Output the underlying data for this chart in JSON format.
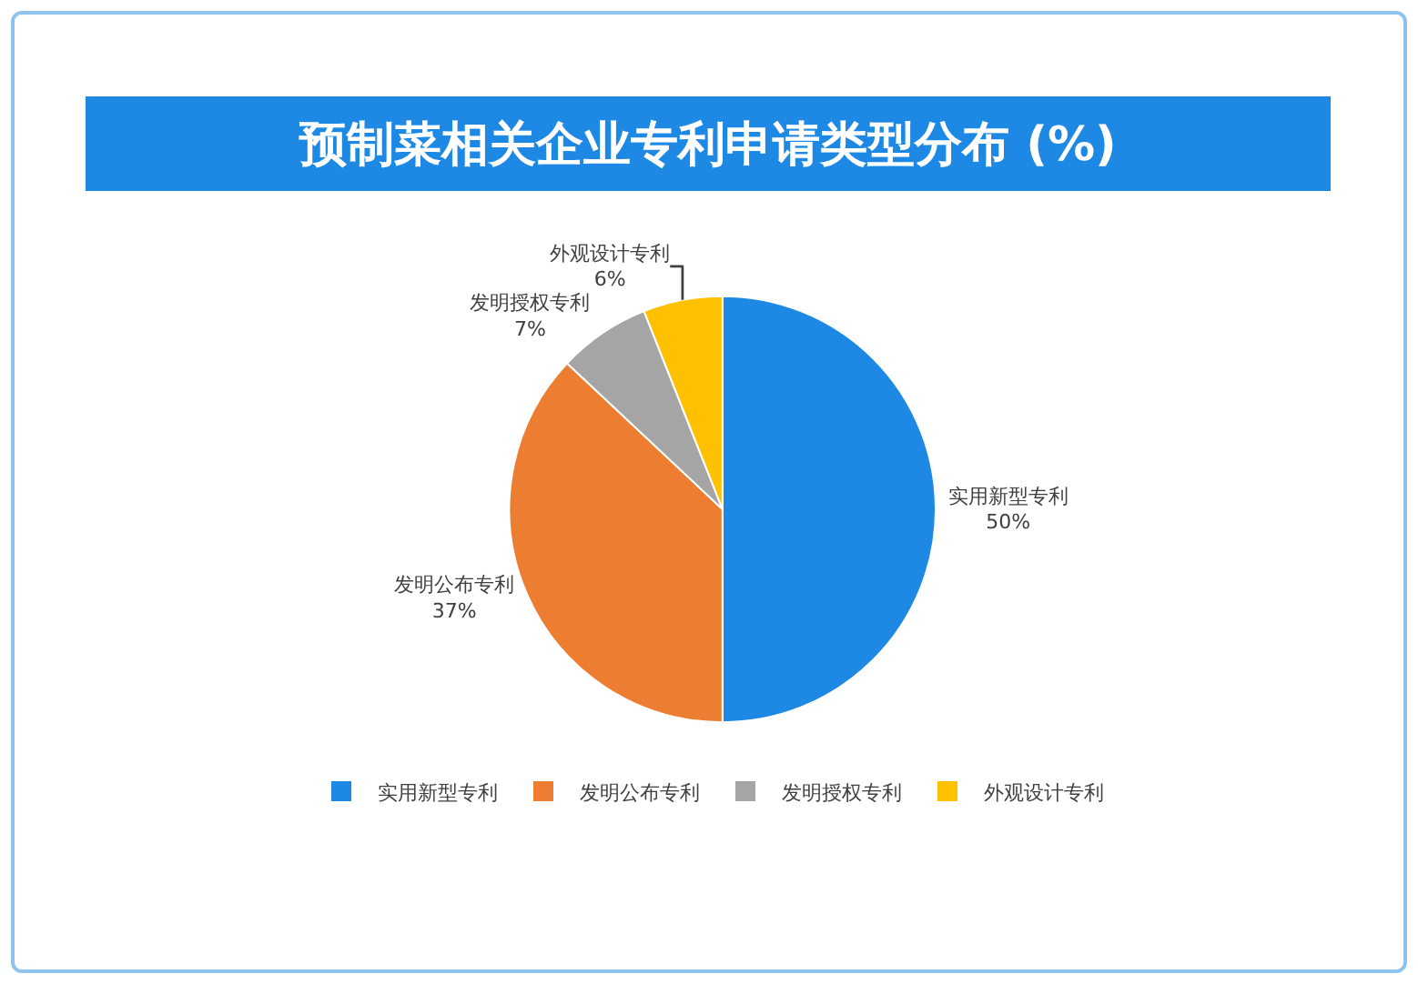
{
  "chart_data": {
    "type": "pie",
    "title": "预制菜相关企业专利申请类型分布 (%)",
    "categories": [
      "实用新型专利",
      "发明公布专利",
      "发明授权专利",
      "外观设计专利"
    ],
    "values": [
      50,
      37,
      7,
      6
    ],
    "value_labels": [
      "50%",
      "37%",
      "7%",
      "6%"
    ],
    "colors": [
      "#1e88e5",
      "#ed7d31",
      "#a5a5a5",
      "#ffc000"
    ],
    "legend": "bottom"
  }
}
